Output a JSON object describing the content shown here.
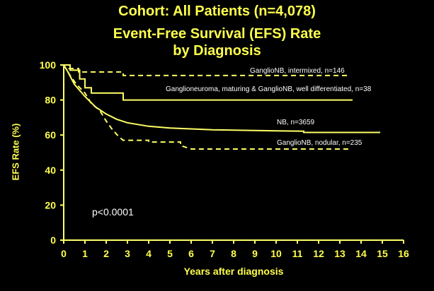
{
  "chart_data": {
    "type": "line",
    "title": [
      "Cohort:  All Patients (n=4,078)",
      "Event-Free Survival (EFS) Rate",
      "by Diagnosis"
    ],
    "xlabel": "Years after diagnosis",
    "ylabel": "EFS Rate (%)",
    "xlim": [
      0,
      16
    ],
    "ylim": [
      0,
      100
    ],
    "xticks": [
      0,
      1,
      2,
      3,
      4,
      5,
      6,
      7,
      8,
      9,
      10,
      11,
      12,
      13,
      14,
      15,
      16
    ],
    "yticks": [
      0,
      20,
      40,
      60,
      80,
      100
    ],
    "grid": false,
    "annotation": "p<0.0001",
    "colors": {
      "axis": "#ffff66",
      "series": "#ffff66",
      "text": "#ffff4d",
      "background": "#000000"
    },
    "series": [
      {
        "name": "GanglioNB, intermixed, n=146",
        "style": "dashed",
        "x": [
          0,
          0.25,
          0.25,
          0.7,
          0.7,
          2.8,
          2.8,
          13.5
        ],
        "y": [
          100,
          100,
          98,
          98,
          96,
          96,
          94,
          94
        ]
      },
      {
        "name": "Ganglioneuroma, maturing & GanglioNB, well differentiated, n=38",
        "style": "solid",
        "x": [
          0,
          0.3,
          0.3,
          0.75,
          0.75,
          1.0,
          1.0,
          1.3,
          1.3,
          2.8,
          2.8,
          13.6
        ],
        "y": [
          100,
          100,
          97,
          97,
          92,
          92,
          87,
          87,
          84,
          84,
          80,
          80
        ]
      },
      {
        "name": "NB, n=3659",
        "style": "solid",
        "x": [
          0,
          0.2,
          0.5,
          1,
          1.5,
          2,
          2.5,
          3,
          3.5,
          4,
          5,
          6,
          7,
          8,
          9,
          10,
          11.3,
          11.3,
          13,
          14.9
        ],
        "y": [
          100,
          96,
          89,
          82,
          76,
          72,
          69,
          67,
          66,
          65,
          64,
          63.5,
          63,
          62.8,
          62.6,
          62.4,
          62.2,
          61.5,
          61.5,
          61.5
        ]
      },
      {
        "name": "GanglioNB, nodular, n=235",
        "style": "dashed",
        "x": [
          0,
          0.3,
          0.6,
          1.0,
          1.3,
          1.7,
          2.0,
          2.3,
          2.6,
          2.8,
          4.0,
          4.0,
          5.5,
          5.5,
          6.0,
          13.5
        ],
        "y": [
          100,
          94,
          89,
          84,
          78,
          74,
          68,
          63,
          59,
          57,
          57,
          56,
          56,
          54,
          52,
          52
        ]
      }
    ]
  }
}
